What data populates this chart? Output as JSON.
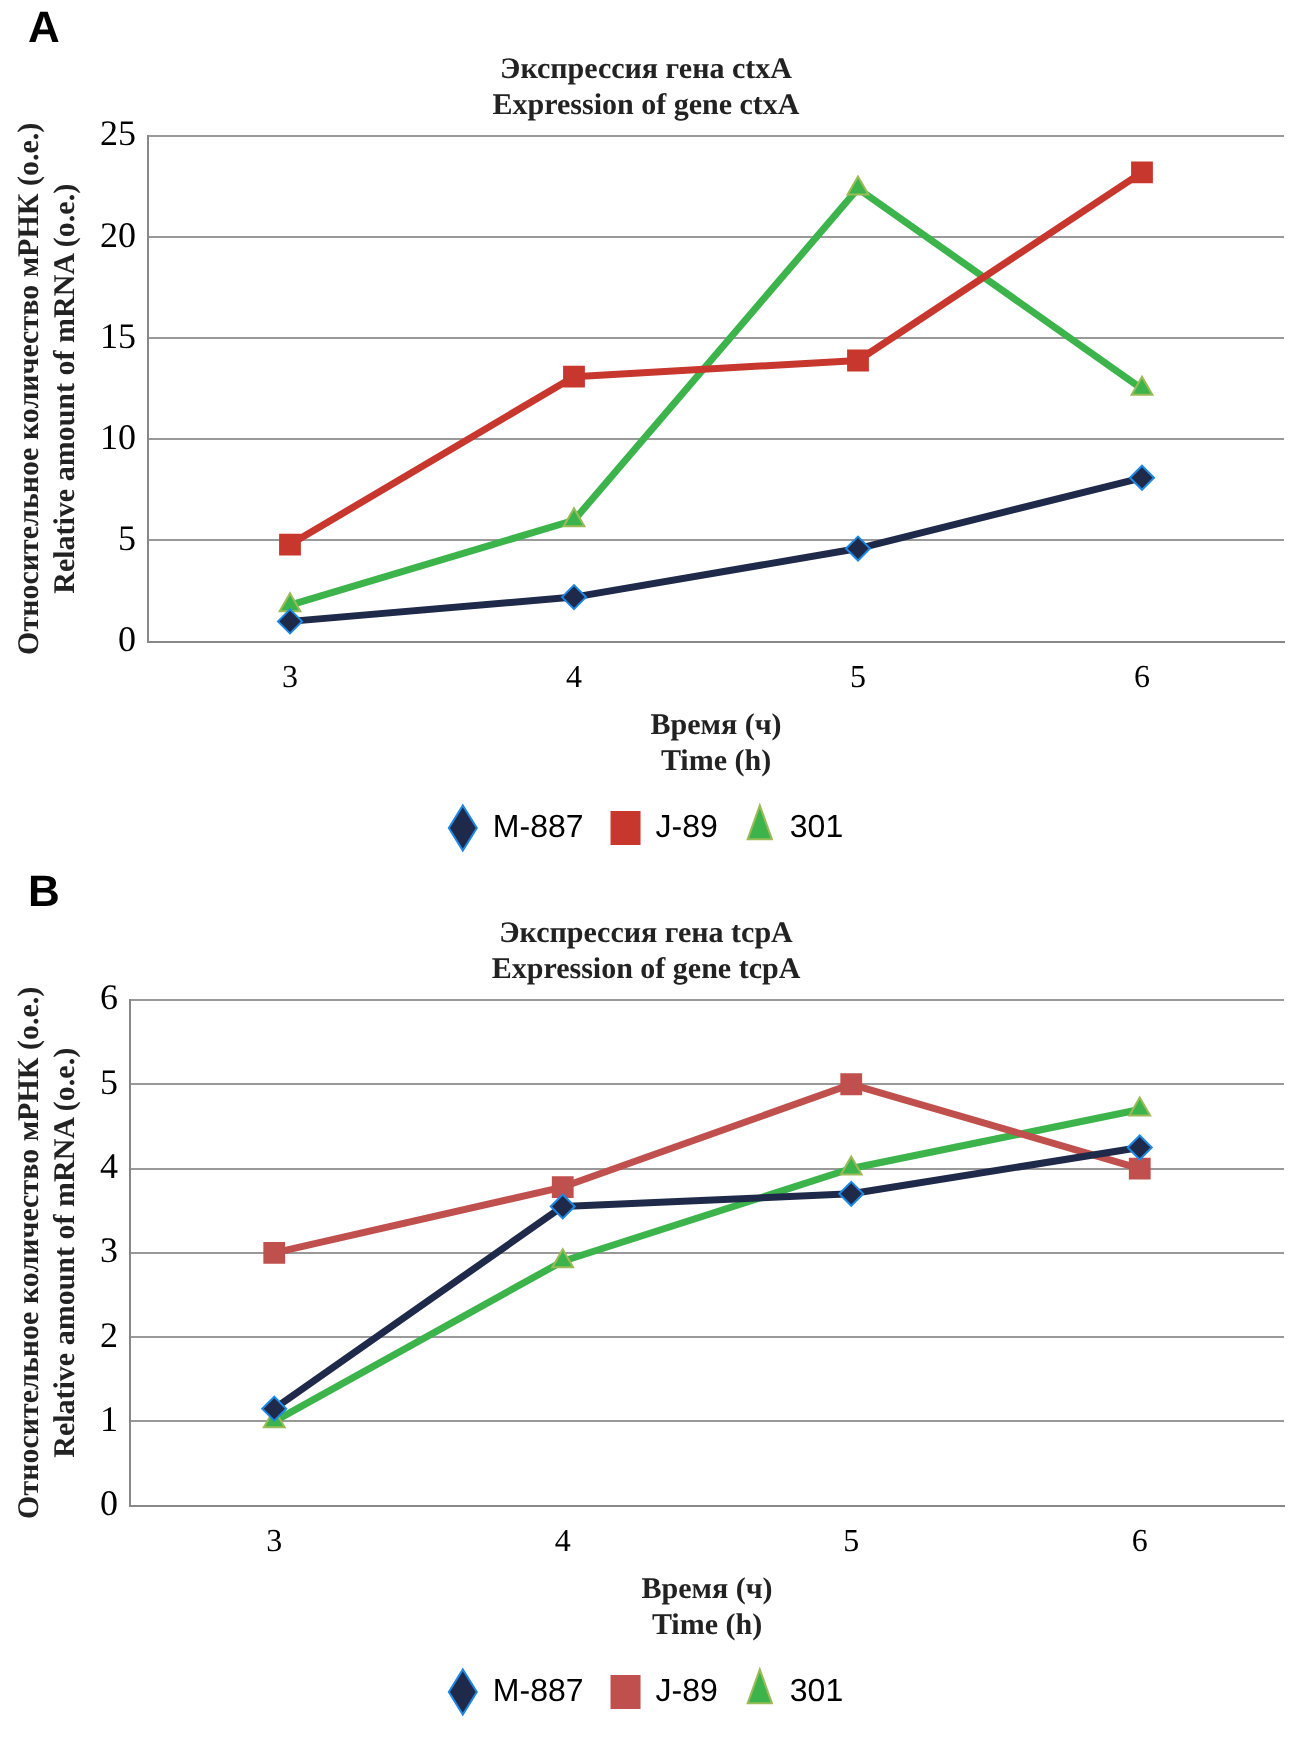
{
  "chart_data": [
    {
      "type": "line",
      "title": "Экспрессия гена ctxA\nExpression of gene ctxA",
      "xlabel": "Время (ч)\nTime (h)",
      "ylabel": "Относительное количество мРНК (о.е.)\nRelative amount of mRNA (o.e.)",
      "annotations": [
        "A"
      ],
      "categories": [
        "3",
        "4",
        "5",
        "6"
      ],
      "series": [
        {
          "name": "M-887",
          "color": "#1f2a4a",
          "marker": "diamond",
          "values": [
            1.0,
            2.2,
            4.6,
            8.1
          ]
        },
        {
          "name": "J-89",
          "color": "#c8372d",
          "marker": "square",
          "values": [
            4.8,
            13.1,
            13.9,
            23.2
          ]
        },
        {
          "name": "301",
          "color": "#3cb44b",
          "marker": "triangle",
          "values": [
            1.8,
            6.0,
            22.4,
            12.5
          ]
        }
      ],
      "ylim": [
        0,
        25
      ],
      "yticks": [
        0,
        5,
        10,
        15,
        20,
        25
      ],
      "grid": "y",
      "legend": "bottom"
    },
    {
      "type": "line",
      "title": "Экспрессия гена tcpA\nExpression of gene tcpA",
      "xlabel": "Время (ч)\nTime (h)",
      "ylabel": "Относительное количество мРНК (о.е.)\nRelative amount of mRNA (o.e.)",
      "annotations": [
        "B"
      ],
      "categories": [
        "3",
        "4",
        "5",
        "6"
      ],
      "series": [
        {
          "name": "M-887",
          "color": "#1f2a4a",
          "marker": "diamond",
          "values": [
            1.15,
            3.55,
            3.7,
            4.25
          ]
        },
        {
          "name": "J-89",
          "color": "#c0504d",
          "marker": "square",
          "values": [
            3.0,
            3.78,
            5.0,
            4.0
          ]
        },
        {
          "name": "301",
          "color": "#3cb44b",
          "marker": "triangle",
          "values": [
            1.0,
            2.9,
            4.0,
            4.7
          ]
        }
      ],
      "ylim": [
        0,
        6
      ],
      "yticks": [
        0,
        1,
        2,
        3,
        4,
        5,
        6
      ],
      "grid": "y",
      "legend": "bottom"
    }
  ]
}
